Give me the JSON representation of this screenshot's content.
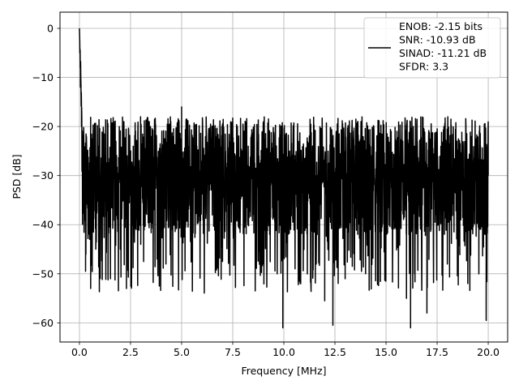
{
  "chart_data": {
    "type": "line",
    "title": "",
    "xlabel": "Frequency [MHz]",
    "ylabel": "PSD [dB]",
    "xlim": [
      -0.95,
      20.95
    ],
    "ylim": [
      -63.9,
      3.3
    ],
    "xticks": [
      0.0,
      2.5,
      5.0,
      7.5,
      10.0,
      12.5,
      15.0,
      17.5,
      20.0
    ],
    "xtick_labels": [
      "0.0",
      "2.5",
      "5.0",
      "7.5",
      "10.0",
      "12.5",
      "15.0",
      "17.5",
      "20.0"
    ],
    "yticks": [
      0,
      -10,
      -20,
      -30,
      -40,
      -50,
      -60
    ],
    "ytick_labels": [
      "0",
      "−10",
      "−20",
      "−30",
      "−40",
      "−50",
      "−60"
    ],
    "grid": true,
    "legend_position": "upper-right",
    "series": [
      {
        "color": "#000000",
        "legend_lines": [
          "ENOB: -2.15 bits",
          "SNR: -10.93 dB",
          "SINAD: -11.21 dB",
          "SFDR: 3.3"
        ],
        "description": "noisy power spectral density from 0 to 20 MHz: narrow peak near 0 dB at DC, then a noise floor between about -18 and -62 dB centred near -30 dB",
        "x_range": [
          0,
          20
        ],
        "points_x": [
          0.0,
          0.02,
          0.05,
          0.1,
          0.15,
          0.2,
          0.3,
          0.5,
          0.55,
          0.8,
          1.0,
          2.0,
          2.3,
          3.0,
          3.8,
          5.0,
          5.05,
          7.0,
          8.6,
          9.95,
          10.0,
          11.0,
          12.0,
          12.4,
          14.0,
          15.0,
          16.0,
          16.2,
          16.4,
          17.0,
          18.0,
          19.0,
          19.9,
          20.0
        ],
        "points_y": [
          0.0,
          -5.0,
          -12.0,
          -20.0,
          -32.0,
          -34.5,
          -49.5,
          -43.0,
          -53.0,
          -45.0,
          -40.0,
          -45.0,
          -53.0,
          -44.0,
          -47.0,
          -16.0,
          -30.0,
          -47.5,
          -53.5,
          -61.0,
          -30.0,
          -28.0,
          -55.5,
          -60.5,
          -50.0,
          -30.0,
          -55.0,
          -61.0,
          -50.0,
          -58.0,
          -48.0,
          -52.0,
          -59.5,
          -30.0
        ]
      }
    ]
  }
}
